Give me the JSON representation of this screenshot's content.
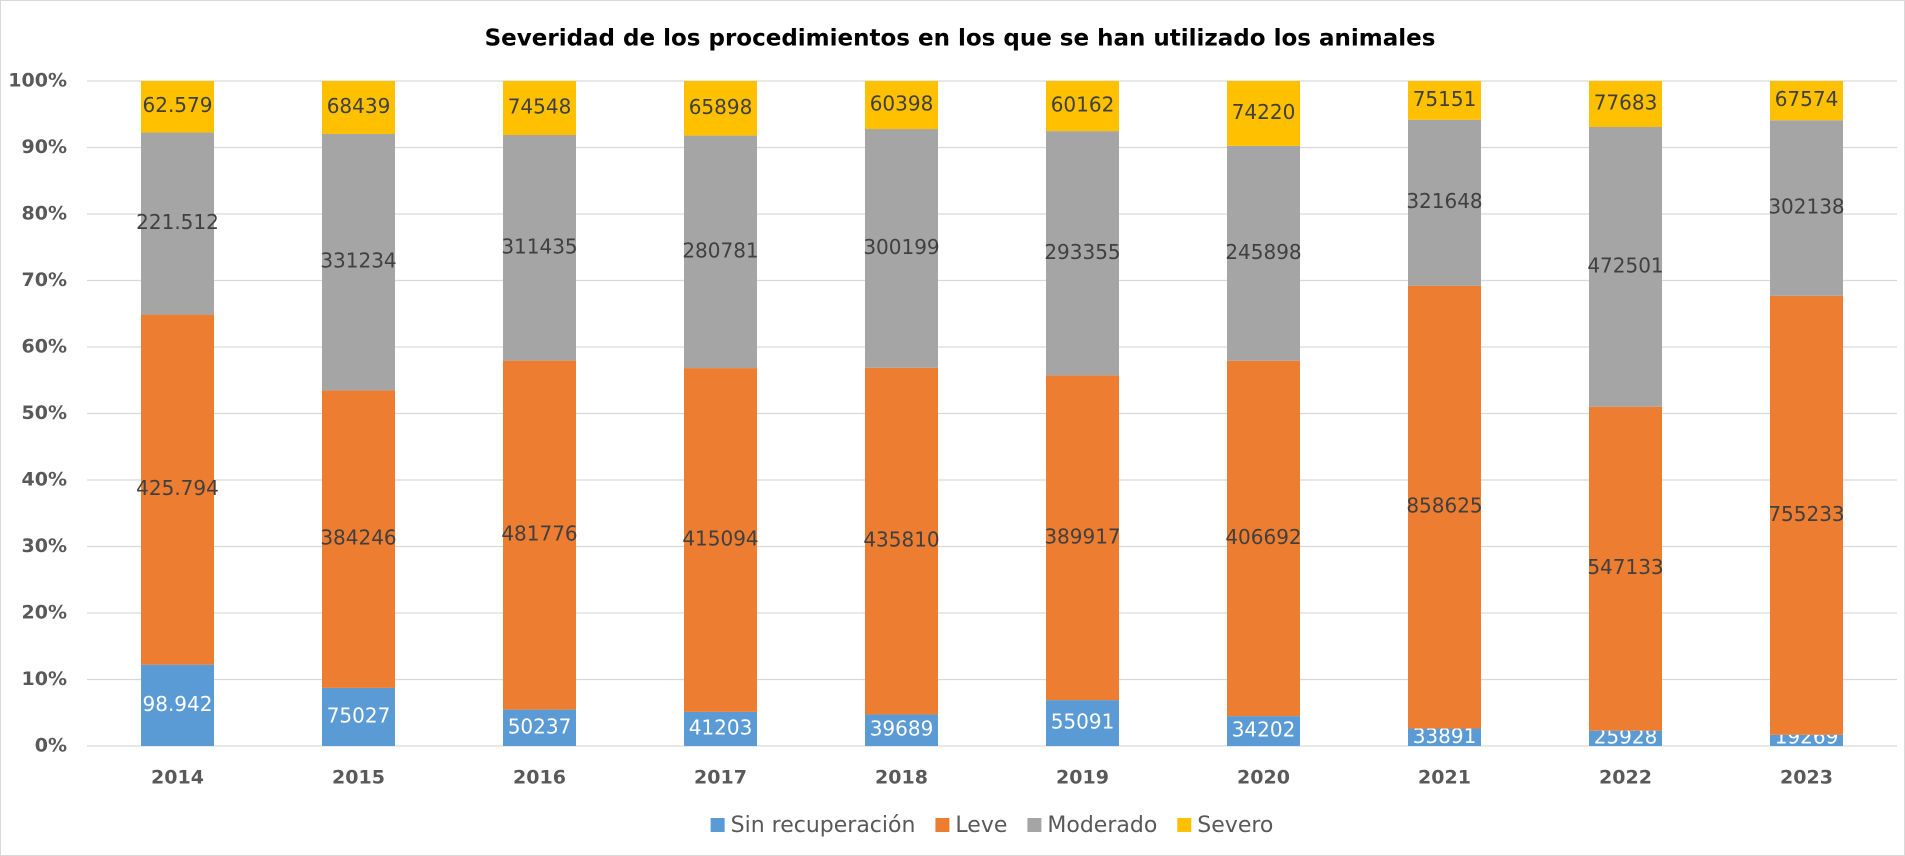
{
  "chart_data": {
    "type": "bar",
    "stacked_percent": true,
    "title": "Severidad de los procedimientos en los que se han utilizado los animales",
    "categories": [
      "2014",
      "2015",
      "2016",
      "2017",
      "2018",
      "2019",
      "2020",
      "2021",
      "2022",
      "2023"
    ],
    "series": [
      {
        "name": "Sin recuperación",
        "color": "#5b9bd5",
        "label_color": "#ffffff",
        "values": [
          98942,
          75027,
          50237,
          41203,
          39689,
          55091,
          34202,
          33891,
          25928,
          19269
        ],
        "value_labels": [
          "98.942",
          "75027",
          "50237",
          "41203",
          "39689",
          "55091",
          "34202",
          "33891",
          "25928",
          "19269"
        ]
      },
      {
        "name": "Leve",
        "color": "#ed7d31",
        "label_color": "#404040",
        "values": [
          425794,
          384246,
          481776,
          415094,
          435810,
          389917,
          406692,
          858625,
          547133,
          755233
        ],
        "value_labels": [
          "425.794",
          "384246",
          "481776",
          "415094",
          "435810",
          "389917",
          "406692",
          "858625",
          "547133",
          "755233"
        ]
      },
      {
        "name": "Moderado",
        "color": "#a5a5a5",
        "label_color": "#404040",
        "values": [
          221512,
          331234,
          311435,
          280781,
          300199,
          293355,
          245898,
          321648,
          472501,
          302138
        ],
        "value_labels": [
          "221.512",
          "331234",
          "311435",
          "280781",
          "300199",
          "293355",
          "245898",
          "321648",
          "472501",
          "302138"
        ]
      },
      {
        "name": "Severo",
        "color": "#ffc000",
        "label_color": "#404040",
        "values": [
          62579,
          68439,
          74548,
          65898,
          60398,
          60162,
          74220,
          75151,
          77683,
          67574
        ],
        "value_labels": [
          "62.579",
          "68439",
          "74548",
          "65898",
          "60398",
          "60162",
          "74220",
          "75151",
          "77683",
          "67574"
        ]
      }
    ],
    "ylim": [
      0,
      100
    ],
    "yticks": [
      {
        "value": 0,
        "label": "0%"
      },
      {
        "value": 10,
        "label": "10%"
      },
      {
        "value": 20,
        "label": "20%"
      },
      {
        "value": 30,
        "label": "30%"
      },
      {
        "value": 40,
        "label": "40%"
      },
      {
        "value": 50,
        "label": "50%"
      },
      {
        "value": 60,
        "label": "60%"
      },
      {
        "value": 70,
        "label": "70%"
      },
      {
        "value": 80,
        "label": "80%"
      },
      {
        "value": 90,
        "label": "90%"
      },
      {
        "value": 100,
        "label": "100%"
      }
    ],
    "grid": true,
    "legend": "bottom"
  }
}
